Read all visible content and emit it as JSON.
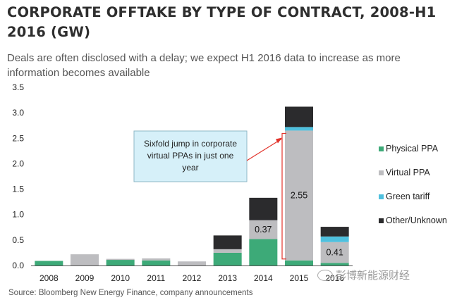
{
  "title": "CORPORATE OFFTAKE BY TYPE OF CONTRACT, 2008-H1 2016 (GW)",
  "subtitle": "Deals are often disclosed with a delay; we expect H1 2016 data to increase as more information becomes available",
  "source": "Source:  Bloomberg New Energy Finance, company announcements",
  "watermark": "彭博新能源财经",
  "colors": {
    "physical_ppa": "#3daa78",
    "virtual_ppa": "#bdbdc0",
    "green_tariff": "#4fc0de",
    "other_unknown": "#2b2b2d",
    "annotation_fill": "#d6f0f9",
    "arrow": "#e2332b"
  },
  "chart_data": {
    "type": "bar",
    "stacked": true,
    "categories": [
      "2008",
      "2009",
      "2010",
      "2011",
      "2012",
      "2013",
      "2014",
      "2015",
      "2016"
    ],
    "series": [
      {
        "name": "Physical PPA",
        "values": [
          0.09,
          0,
          0.11,
          0.1,
          0,
          0.25,
          0.52,
          0.1,
          0.05
        ]
      },
      {
        "name": "Virtual PPA",
        "values": [
          0,
          0.22,
          0.02,
          0.04,
          0.08,
          0.07,
          0.37,
          2.55,
          0.41
        ]
      },
      {
        "name": "Green tariff",
        "values": [
          0,
          0,
          0,
          0,
          0,
          0,
          0,
          0.07,
          0.11
        ]
      },
      {
        "name": "Other/Unknown",
        "values": [
          0,
          0,
          0,
          0,
          0,
          0.27,
          0.44,
          0.4,
          0.19
        ]
      }
    ],
    "data_labels": [
      {
        "category": "2014",
        "series": "Virtual PPA",
        "text": "0.37"
      },
      {
        "category": "2015",
        "series": "Virtual PPA",
        "text": "2.55"
      },
      {
        "category": "2016",
        "series": "Virtual PPA",
        "text": "0.41"
      }
    ],
    "yticks": [
      "0.0",
      "0.5",
      "1.0",
      "1.5",
      "2.0",
      "2.5",
      "3.0",
      "3.5"
    ],
    "ylim": [
      0,
      3.5
    ],
    "grid": false,
    "legend_position": "right",
    "annotation": {
      "lines": [
        "Sixfold jump in corporate",
        "virtual PPAs in just one",
        "year"
      ],
      "target_category": "2015"
    }
  }
}
